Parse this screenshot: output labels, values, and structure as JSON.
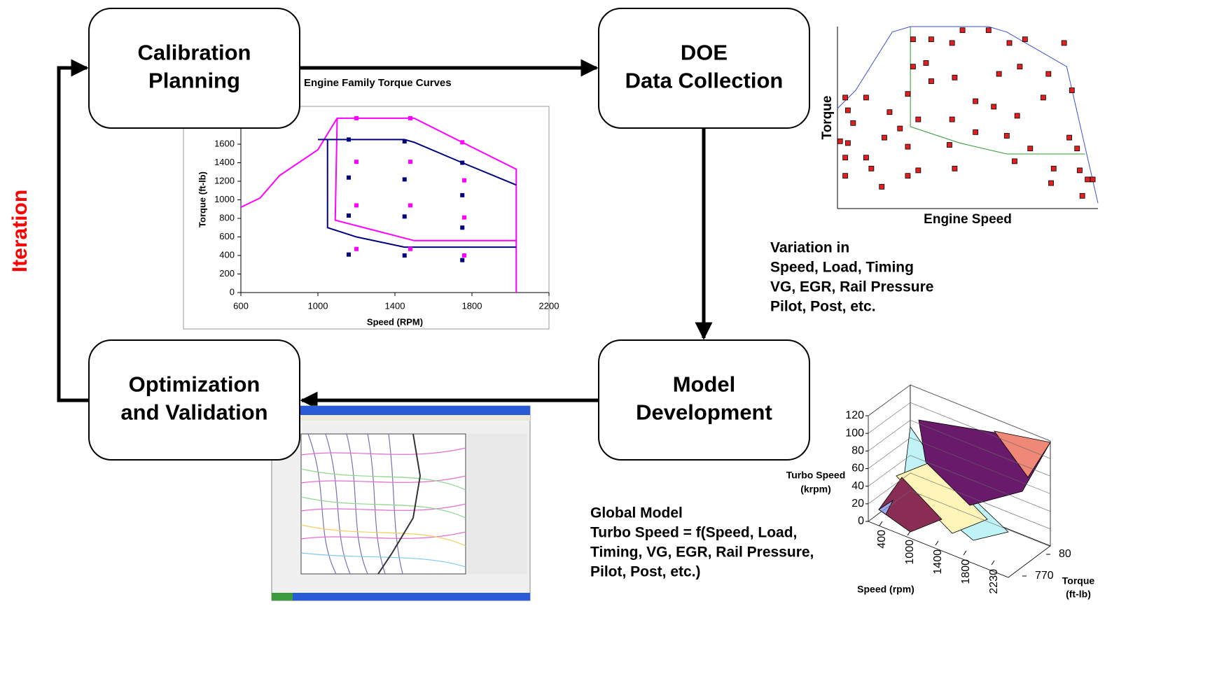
{
  "iteration_label": "Iteration",
  "nodes": [
    {
      "lines": [
        "Calibration",
        "Planning"
      ]
    },
    {
      "lines": [
        "DOE",
        "Data Collection"
      ]
    },
    {
      "lines": [
        "Optimization",
        "and Validation"
      ]
    },
    {
      "lines": [
        "Model",
        "Development"
      ]
    }
  ],
  "variation_text": [
    "Variation in",
    "Speed, Load, Timing",
    "VG, EGR, Rail Pressure",
    "Pilot, Post, etc."
  ],
  "global_model_text": [
    "Global Model",
    "Turbo Speed = f(Speed, Load,",
    "Timing, VG, EGR, Rail Pressure,",
    "Pilot, Post, etc.)"
  ],
  "torque_chart": {
    "type": "line",
    "title": "Engine Family Torque Curves",
    "x_label": "Speed (RPM)",
    "y_label": "Torque (ft-lb)",
    "xlim": [
      600,
      2200
    ],
    "xticks": [
      600,
      1000,
      1400,
      1800,
      2200
    ],
    "ylim": [
      0,
      2000
    ],
    "yticks": [
      0,
      200,
      400,
      600,
      800,
      1000,
      1200,
      1400,
      1600
    ],
    "lines": [
      {
        "color": "#ff00ff",
        "x": [
          600,
          700,
          800,
          1000,
          1100,
          1200,
          1500,
          1750,
          2030,
          2030
        ],
        "y": [
          920,
          1020,
          1260,
          1540,
          1880,
          1880,
          1880,
          1620,
          1330,
          0
        ]
      },
      {
        "color": "#ff00ff",
        "x": [
          1100,
          1090,
          1500,
          2030
        ],
        "y": [
          1880,
          780,
          560,
          560
        ]
      },
      {
        "color": "#000080",
        "x": [
          1000,
          1450,
          1500,
          1750,
          2030
        ],
        "y": [
          1650,
          1650,
          1620,
          1400,
          1160
        ]
      },
      {
        "color": "#000080",
        "x": [
          1050,
          1050,
          1200,
          1450,
          2030
        ],
        "y": [
          1650,
          700,
          600,
          490,
          490
        ]
      }
    ],
    "points": [
      {
        "color": "#000080",
        "x": [
          1160,
          1450,
          1750,
          1160,
          1450,
          1750,
          1160,
          1450,
          1750,
          1160,
          1450,
          1750
        ],
        "y": [
          1650,
          1630,
          1400,
          1240,
          1220,
          1050,
          830,
          820,
          700,
          410,
          400,
          350
        ]
      },
      {
        "color": "#ff00ff",
        "x": [
          1200,
          1480,
          1750,
          1200,
          1480,
          1760,
          1200,
          1480,
          1760,
          1200,
          1480,
          1760
        ],
        "y": [
          1880,
          1880,
          1620,
          1410,
          1410,
          1210,
          940,
          940,
          810,
          470,
          470,
          400
        ]
      }
    ]
  },
  "doe_chart": {
    "type": "scatter",
    "x_label": "Engine Speed",
    "y_label": "Torque",
    "xlim": [
      0,
      100
    ],
    "ylim": [
      0,
      100
    ],
    "lines": [
      {
        "color": "#3a4fd6",
        "x": [
          0,
          7,
          21,
          28,
          58,
          65,
          88,
          100
        ],
        "y": [
          55,
          65,
          97,
          100,
          100,
          97,
          78,
          3
        ]
      },
      {
        "color": "#2e9b2e",
        "x": [
          28,
          28,
          47,
          65,
          95
        ],
        "y": [
          100,
          45,
          36,
          30,
          30
        ]
      }
    ],
    "point_color": "#e02020",
    "x": [
      29,
      36,
      44,
      48,
      58,
      66,
      72,
      87,
      29,
      34,
      36,
      62,
      70,
      81,
      27,
      45,
      53,
      60,
      53,
      69,
      79,
      90,
      3,
      11,
      4,
      6,
      20,
      24,
      18,
      31,
      44,
      1,
      4,
      3,
      11,
      27,
      43,
      65,
      74,
      89,
      92,
      3,
      13,
      17,
      27,
      31,
      45,
      68,
      83,
      93,
      96,
      82,
      94,
      98
    ],
    "y": [
      93,
      93,
      91,
      98,
      98,
      91,
      93,
      91,
      78,
      80,
      70,
      74,
      78,
      74,
      63,
      72,
      59,
      56,
      42,
      51,
      61,
      65,
      61,
      61,
      54,
      47,
      53,
      44,
      39,
      49,
      49,
      37,
      36,
      28,
      28,
      34,
      35,
      40,
      33,
      39,
      33,
      18,
      22,
      12,
      18,
      21,
      22,
      26,
      22,
      21,
      16,
      14,
      7,
      16
    ]
  },
  "surface_chart": {
    "type": "surface",
    "z_label": [
      "Turbo Speed",
      "(krpm)"
    ],
    "zlim": [
      0,
      120
    ],
    "zticks": [
      0,
      20,
      40,
      60,
      80,
      100,
      120
    ],
    "x_label": "Speed (rpm)",
    "speed_ticks": [
      400,
      1000,
      1400,
      1800,
      2230
    ],
    "y_label": [
      "Torque",
      "(ft-lb)"
    ],
    "torque_ticks": [
      80,
      770
    ]
  }
}
